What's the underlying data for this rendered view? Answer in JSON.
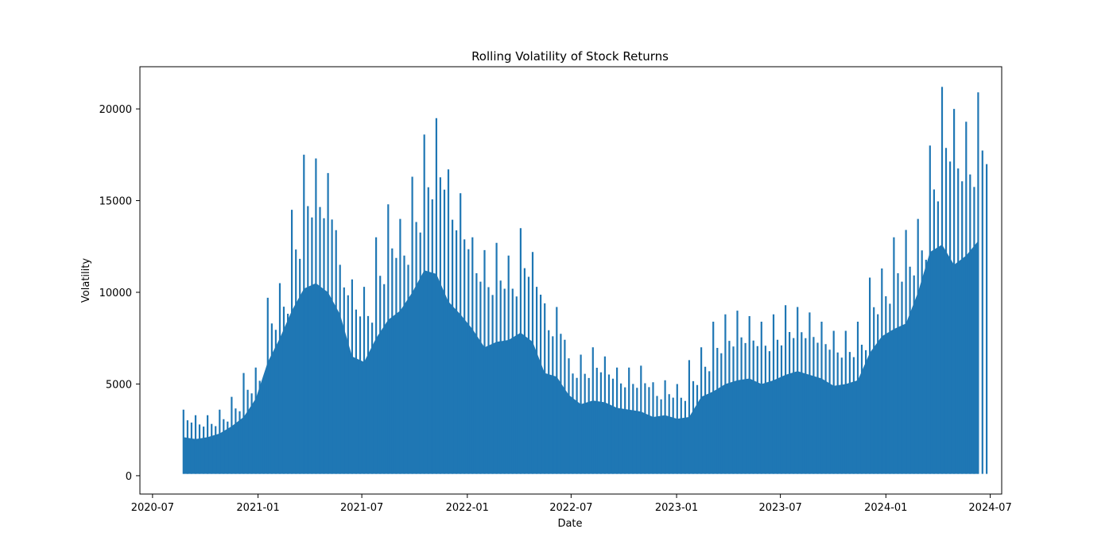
{
  "chart_data": {
    "type": "area",
    "title": "Rolling Volatility of Stock Returns",
    "xlabel": "Date",
    "ylabel": "Volatility",
    "x_range": [
      "2020-06-09",
      "2024-07-21"
    ],
    "ylim": [
      -1000,
      22300
    ],
    "x_ticks": [
      "2020-07",
      "2021-01",
      "2021-07",
      "2022-01",
      "2022-07",
      "2023-01",
      "2023-07",
      "2024-01",
      "2024-07"
    ],
    "y_ticks": [
      0,
      5000,
      10000,
      15000,
      20000
    ],
    "grid": false,
    "legend": "none",
    "series_color": "#1f77b4",
    "series": [
      {
        "x": [
          "2020-08-24",
          "2020-09-14",
          "2020-10-05",
          "2020-10-26",
          "2020-11-16",
          "2020-12-07",
          "2020-12-28",
          "2021-01-18",
          "2021-02-08",
          "2021-03-01",
          "2021-03-22",
          "2021-04-12",
          "2021-05-03",
          "2021-05-24",
          "2021-06-14",
          "2021-07-05",
          "2021-07-26",
          "2021-08-16",
          "2021-09-06",
          "2021-09-27",
          "2021-10-18",
          "2021-11-08",
          "2021-11-29",
          "2021-12-20",
          "2022-01-10",
          "2022-01-31",
          "2022-02-21",
          "2022-03-14",
          "2022-04-04",
          "2022-04-25",
          "2022-05-16",
          "2022-06-06",
          "2022-06-27",
          "2022-07-18",
          "2022-08-08",
          "2022-08-29",
          "2022-09-19",
          "2022-10-10",
          "2022-10-31",
          "2022-11-21",
          "2022-12-12",
          "2023-01-02",
          "2023-01-23",
          "2023-02-13",
          "2023-03-06",
          "2023-03-27",
          "2023-04-17",
          "2023-05-08",
          "2023-05-29",
          "2023-06-19",
          "2023-07-10",
          "2023-07-31",
          "2023-08-21",
          "2023-09-11",
          "2023-10-02",
          "2023-10-23",
          "2023-11-13",
          "2023-12-04",
          "2023-12-25",
          "2024-01-15",
          "2024-02-05",
          "2024-02-26",
          "2024-03-18",
          "2024-04-08",
          "2024-04-29",
          "2024-05-20",
          "2024-06-10"
        ],
        "base": [
          2100,
          2000,
          2100,
          2300,
          2700,
          3200,
          4200,
          6200,
          7500,
          9000,
          10200,
          10500,
          10000,
          8800,
          6500,
          6200,
          7500,
          8500,
          9000,
          10000,
          11200,
          11000,
          9500,
          8800,
          8000,
          7000,
          7300,
          7400,
          7800,
          7300,
          5600,
          5400,
          4400,
          3900,
          4100,
          4000,
          3700,
          3600,
          3500,
          3200,
          3300,
          3100,
          3200,
          4300,
          4600,
          5000,
          5200,
          5300,
          5000,
          5200,
          5500,
          5700,
          5500,
          5300,
          4900,
          5000,
          5200,
          6700,
          7600,
          8000,
          8300,
          10000,
          12200,
          12600,
          11500,
          12000,
          12800
        ],
        "peak": [
          3600,
          3300,
          3300,
          3600,
          4300,
          5600,
          5900,
          9700,
          10500,
          14500,
          17500,
          17300,
          16500,
          11500,
          10700,
          10300,
          13000,
          14800,
          14000,
          16300,
          18600,
          19500,
          16700,
          15400,
          13000,
          12300,
          12700,
          12000,
          13500,
          12200,
          9400,
          9200,
          6400,
          6600,
          7000,
          6500,
          5900,
          5900,
          6000,
          5100,
          5200,
          5000,
          6300,
          7000,
          8400,
          8800,
          9000,
          8700,
          8400,
          8800,
          9300,
          9200,
          8900,
          8400,
          7900,
          7900,
          8400,
          10800,
          11300,
          13000,
          13400,
          14000,
          18000,
          21200,
          20000,
          19300,
          20900
        ],
        "floor": [
          100,
          100,
          100,
          100,
          100,
          100,
          100,
          100,
          100,
          100,
          100,
          100,
          100,
          100,
          100,
          100,
          100,
          100,
          100,
          100,
          100,
          100,
          100,
          100,
          100,
          100,
          100,
          100,
          100,
          100,
          100,
          100,
          100,
          100,
          100,
          100,
          100,
          100,
          100,
          100,
          100,
          100,
          100,
          100,
          100,
          100,
          100,
          100,
          100,
          100,
          100,
          100,
          100,
          100,
          100,
          100,
          100,
          100,
          100,
          100,
          100,
          100,
          100,
          100,
          100,
          100,
          100
        ]
      }
    ]
  }
}
